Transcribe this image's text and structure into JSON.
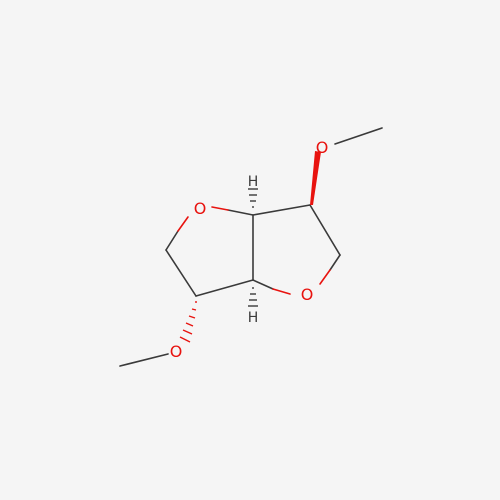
{
  "background": "#f5f5f5",
  "colors": {
    "carbon_bond": "#3a3a3a",
    "oxygen": "#e8130f",
    "hydrogen": "#3a3a3a"
  },
  "atoms": {
    "o_ring_left": "O",
    "o_ring_right": "O",
    "o_methoxy_top": "O",
    "o_methoxy_bottom": "O",
    "h_top": "H",
    "h_bottom": "H"
  }
}
